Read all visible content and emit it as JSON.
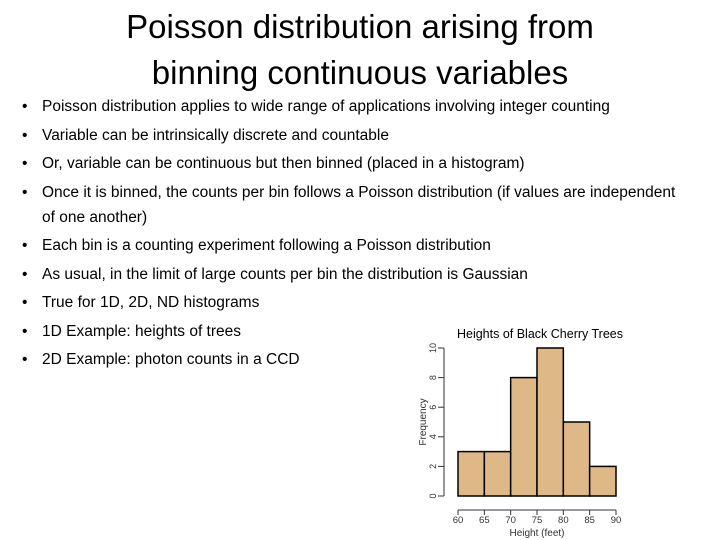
{
  "title": "Poisson distribution arising from binning continuous variables",
  "bullets": [
    "Poisson distribution applies to wide range of applications involving integer counting",
    "Variable can be intrinsically discrete and countable",
    "Or, variable can be continuous but then binned (placed in a histogram)",
    "Once it is binned, the counts per bin follows a Poisson distribution (if values are independent of one another)",
    "Each bin is a counting experiment following a Poisson distribution",
    "As usual, in the limit of large counts per bin the distribution is Gaussian",
    "True for 1D, 2D, ND histograms",
    "1D Example: heights of trees",
    "2D Example: photon counts in a CCD"
  ],
  "chart_data": {
    "type": "histogram",
    "title": "Heights of Black Cherry Trees",
    "x_label": "Height (feet)",
    "y_label": "Frequency",
    "bins": [
      60,
      65,
      70,
      75,
      80,
      85,
      90
    ],
    "values": [
      3,
      3,
      8,
      10,
      5,
      2
    ],
    "color": "#deb887",
    "xlim": [
      60,
      90
    ],
    "xticks": [
      60,
      65,
      70,
      75,
      80,
      85,
      90
    ],
    "ylim": [
      0,
      10
    ],
    "yticks": [
      0,
      2,
      4,
      6,
      8,
      10
    ]
  }
}
